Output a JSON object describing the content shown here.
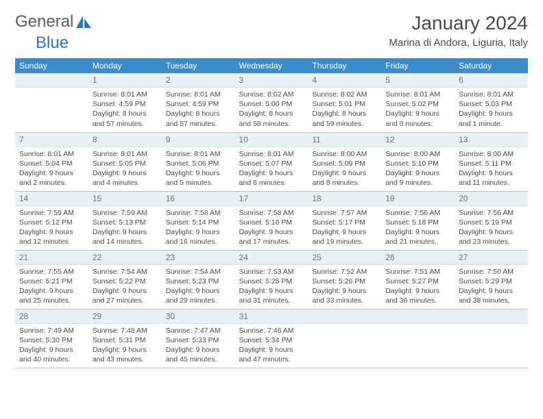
{
  "brand": {
    "part1": "General",
    "part2": "Blue"
  },
  "title": "January 2024",
  "location": "Marina di Andora, Liguria, Italy",
  "weekdays": [
    "Sunday",
    "Monday",
    "Tuesday",
    "Wednesday",
    "Thursday",
    "Friday",
    "Saturday"
  ],
  "colors": {
    "header_bg": "#3b8bc9",
    "header_fg": "#ffffff",
    "daynum_bg": "#eceff2",
    "text": "#4a4a4a",
    "brand_blue": "#2e75b6"
  },
  "first_weekday_offset": 1,
  "days": [
    {
      "n": 1,
      "sunrise": "8:01 AM",
      "sunset": "4:59 PM",
      "daylight": "8 hours and 57 minutes."
    },
    {
      "n": 2,
      "sunrise": "8:01 AM",
      "sunset": "4:59 PM",
      "daylight": "8 hours and 57 minutes."
    },
    {
      "n": 3,
      "sunrise": "8:02 AM",
      "sunset": "5:00 PM",
      "daylight": "8 hours and 58 minutes."
    },
    {
      "n": 4,
      "sunrise": "8:02 AM",
      "sunset": "5:01 PM",
      "daylight": "8 hours and 59 minutes."
    },
    {
      "n": 5,
      "sunrise": "8:01 AM",
      "sunset": "5:02 PM",
      "daylight": "9 hours and 0 minutes."
    },
    {
      "n": 6,
      "sunrise": "8:01 AM",
      "sunset": "5:03 PM",
      "daylight": "9 hours and 1 minute."
    },
    {
      "n": 7,
      "sunrise": "8:01 AM",
      "sunset": "5:04 PM",
      "daylight": "9 hours and 2 minutes."
    },
    {
      "n": 8,
      "sunrise": "8:01 AM",
      "sunset": "5:05 PM",
      "daylight": "9 hours and 4 minutes."
    },
    {
      "n": 9,
      "sunrise": "8:01 AM",
      "sunset": "5:06 PM",
      "daylight": "9 hours and 5 minutes."
    },
    {
      "n": 10,
      "sunrise": "8:01 AM",
      "sunset": "5:07 PM",
      "daylight": "9 hours and 6 minutes."
    },
    {
      "n": 11,
      "sunrise": "8:00 AM",
      "sunset": "5:09 PM",
      "daylight": "9 hours and 8 minutes."
    },
    {
      "n": 12,
      "sunrise": "8:00 AM",
      "sunset": "5:10 PM",
      "daylight": "9 hours and 9 minutes."
    },
    {
      "n": 13,
      "sunrise": "8:00 AM",
      "sunset": "5:11 PM",
      "daylight": "9 hours and 11 minutes."
    },
    {
      "n": 14,
      "sunrise": "7:59 AM",
      "sunset": "5:12 PM",
      "daylight": "9 hours and 12 minutes."
    },
    {
      "n": 15,
      "sunrise": "7:59 AM",
      "sunset": "5:13 PM",
      "daylight": "9 hours and 14 minutes."
    },
    {
      "n": 16,
      "sunrise": "7:58 AM",
      "sunset": "5:14 PM",
      "daylight": "9 hours and 16 minutes."
    },
    {
      "n": 17,
      "sunrise": "7:58 AM",
      "sunset": "5:16 PM",
      "daylight": "9 hours and 17 minutes."
    },
    {
      "n": 18,
      "sunrise": "7:57 AM",
      "sunset": "5:17 PM",
      "daylight": "9 hours and 19 minutes."
    },
    {
      "n": 19,
      "sunrise": "7:56 AM",
      "sunset": "5:18 PM",
      "daylight": "9 hours and 21 minutes."
    },
    {
      "n": 20,
      "sunrise": "7:56 AM",
      "sunset": "5:19 PM",
      "daylight": "9 hours and 23 minutes."
    },
    {
      "n": 21,
      "sunrise": "7:55 AM",
      "sunset": "5:21 PM",
      "daylight": "9 hours and 25 minutes."
    },
    {
      "n": 22,
      "sunrise": "7:54 AM",
      "sunset": "5:22 PM",
      "daylight": "9 hours and 27 minutes."
    },
    {
      "n": 23,
      "sunrise": "7:54 AM",
      "sunset": "5:23 PM",
      "daylight": "9 hours and 29 minutes."
    },
    {
      "n": 24,
      "sunrise": "7:53 AM",
      "sunset": "5:25 PM",
      "daylight": "9 hours and 31 minutes."
    },
    {
      "n": 25,
      "sunrise": "7:52 AM",
      "sunset": "5:26 PM",
      "daylight": "9 hours and 33 minutes."
    },
    {
      "n": 26,
      "sunrise": "7:51 AM",
      "sunset": "5:27 PM",
      "daylight": "9 hours and 36 minutes."
    },
    {
      "n": 27,
      "sunrise": "7:50 AM",
      "sunset": "5:29 PM",
      "daylight": "9 hours and 38 minutes."
    },
    {
      "n": 28,
      "sunrise": "7:49 AM",
      "sunset": "5:30 PM",
      "daylight": "9 hours and 40 minutes."
    },
    {
      "n": 29,
      "sunrise": "7:48 AM",
      "sunset": "5:31 PM",
      "daylight": "9 hours and 43 minutes."
    },
    {
      "n": 30,
      "sunrise": "7:47 AM",
      "sunset": "5:33 PM",
      "daylight": "9 hours and 45 minutes."
    },
    {
      "n": 31,
      "sunrise": "7:46 AM",
      "sunset": "5:34 PM",
      "daylight": "9 hours and 47 minutes."
    }
  ],
  "labels": {
    "sunrise": "Sunrise: ",
    "sunset": "Sunset: ",
    "daylight": "Daylight: "
  }
}
